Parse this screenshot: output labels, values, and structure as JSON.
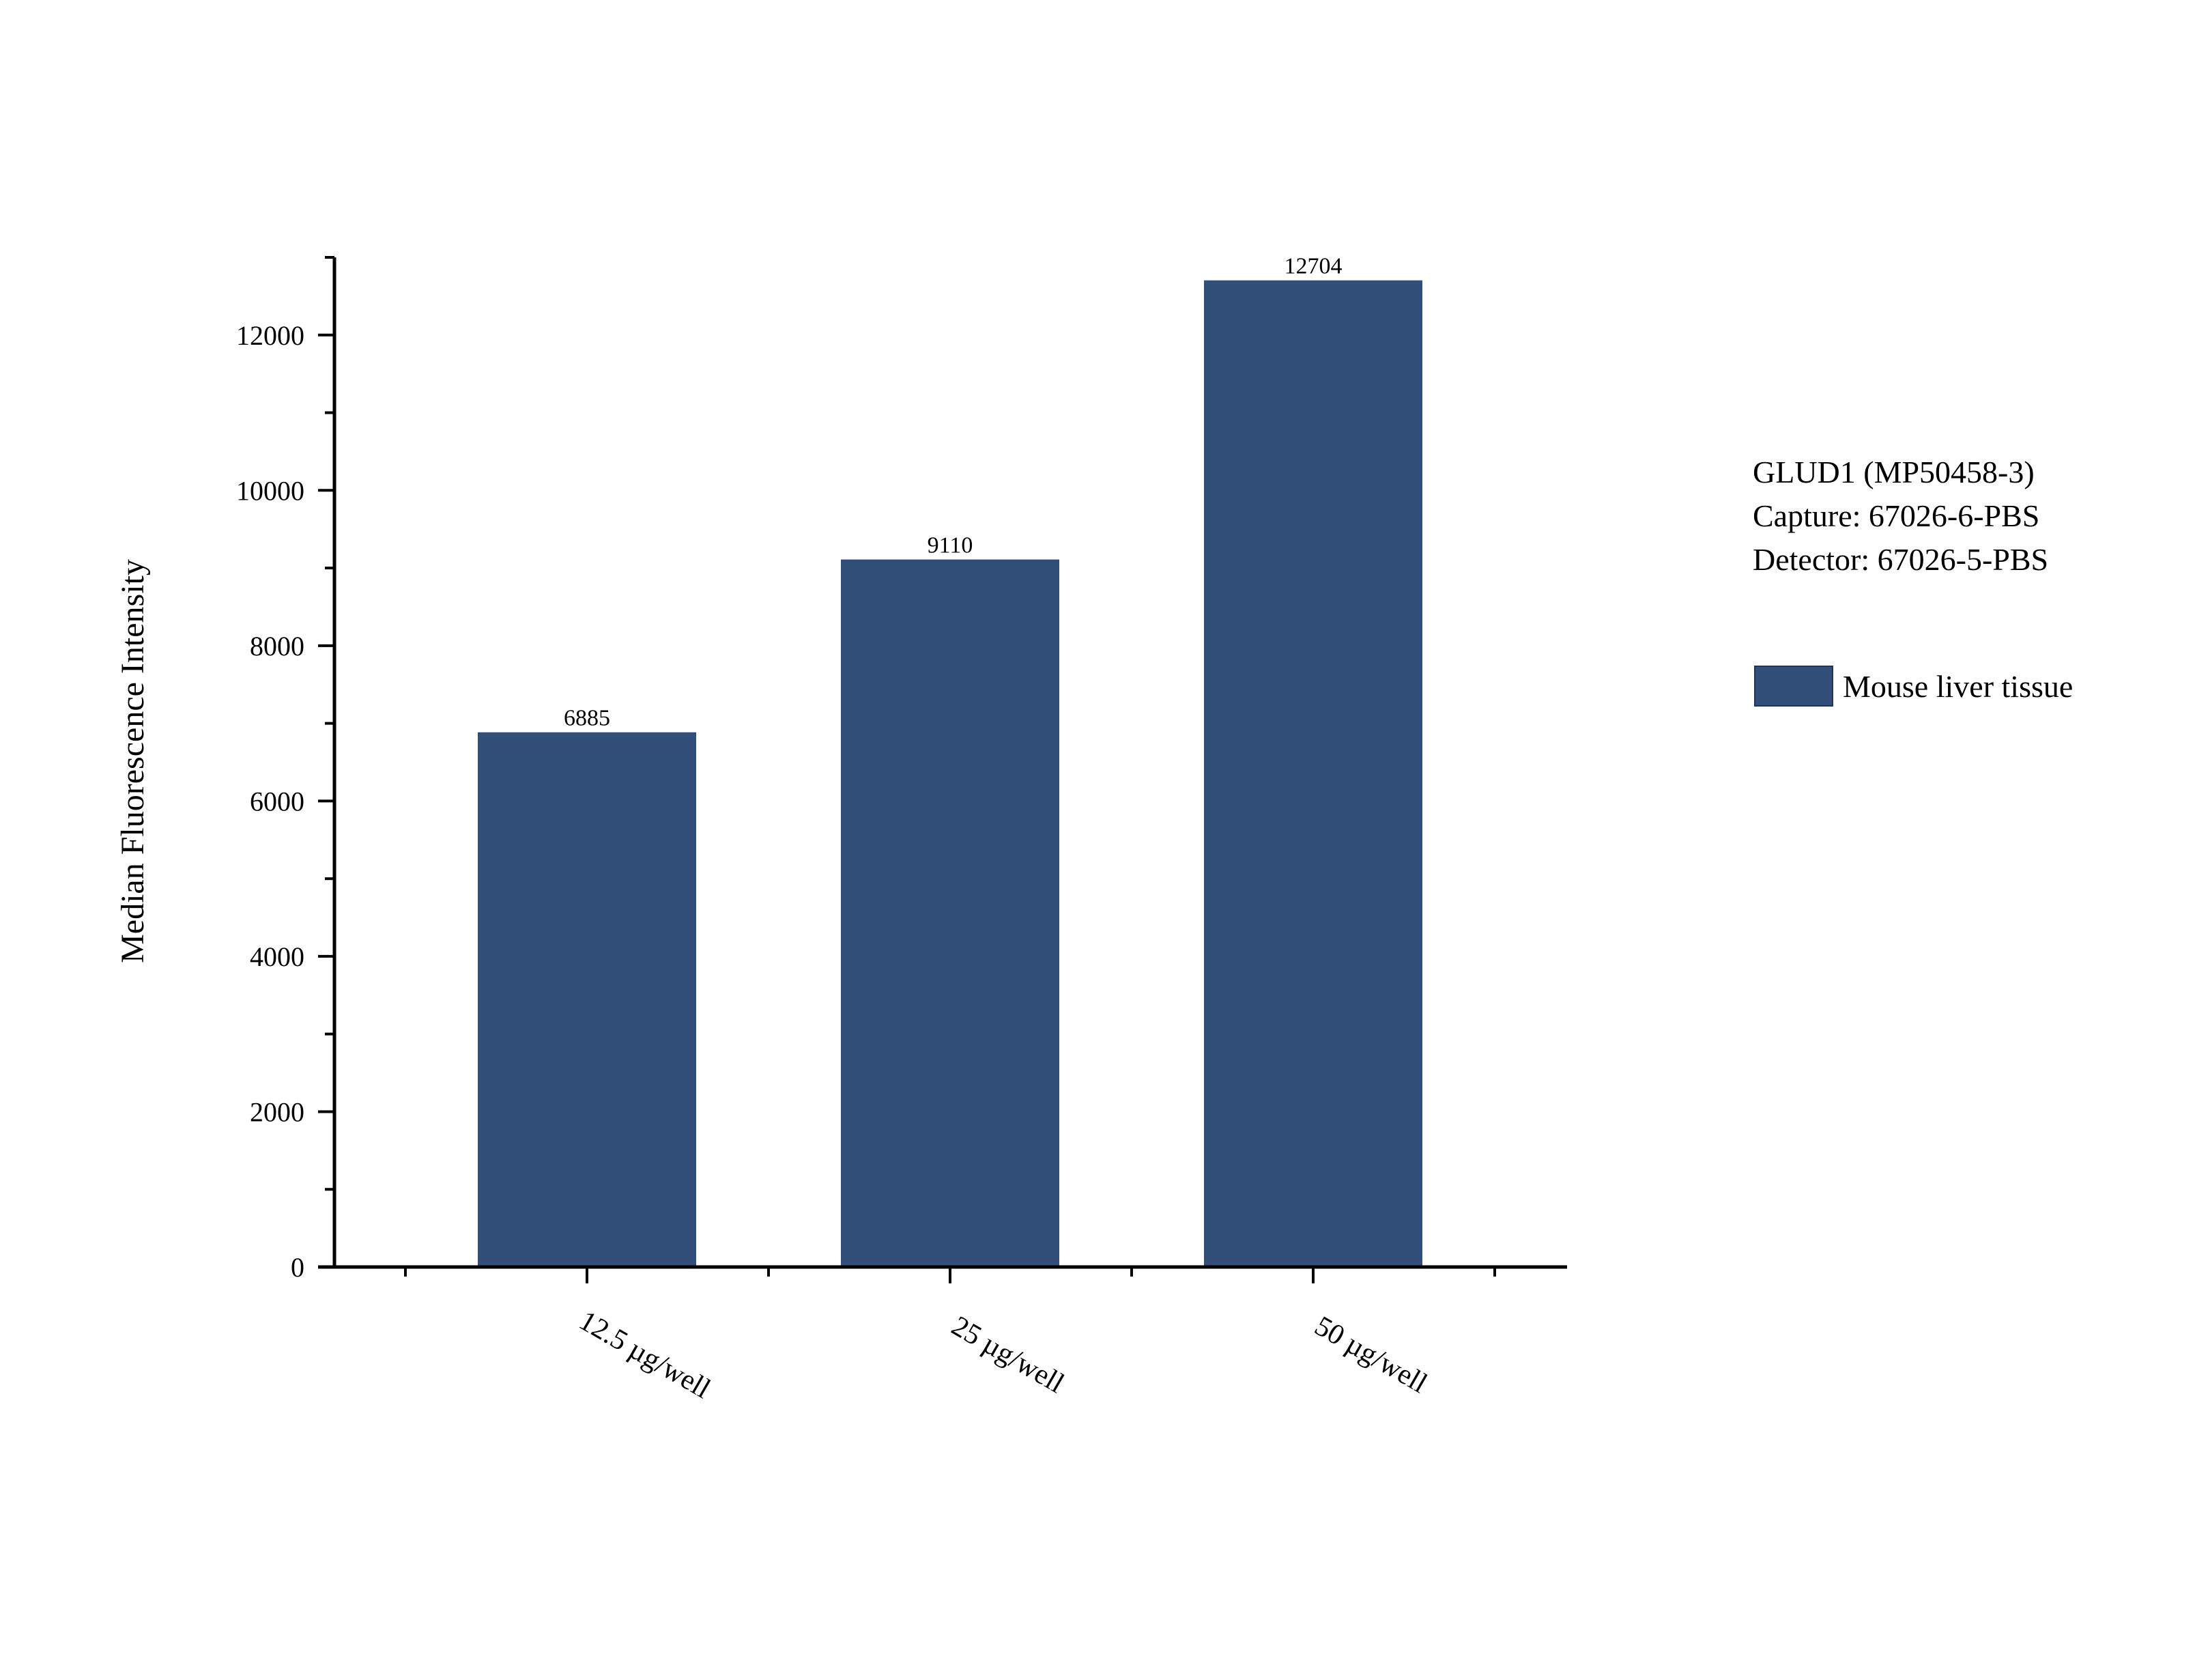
{
  "chart_data": {
    "type": "bar",
    "categories": [
      "12.5 µg/well",
      "25 µg/well",
      "50 µg/well"
    ],
    "series": [
      {
        "name": "Mouse liver tissue",
        "values": [
          6885,
          9110,
          12704
        ],
        "color": "#314f78"
      }
    ],
    "data_labels": [
      "6885",
      "9110",
      "12704"
    ],
    "xlabel": "",
    "ylabel": "Median Fluorescence Intensity",
    "ylim": [
      0,
      13000
    ],
    "yticks": [
      0,
      2000,
      4000,
      6000,
      8000,
      10000,
      12000
    ],
    "ytick_labels": [
      "0",
      "2000",
      "4000",
      "6000",
      "8000",
      "10000",
      "12000"
    ],
    "grid": false,
    "legend_position": "right",
    "annotation": [
      "GLUD1 (MP50458-3)",
      "Capture: 67026-6-PBS",
      "Detector: 67026-5-PBS"
    ]
  }
}
